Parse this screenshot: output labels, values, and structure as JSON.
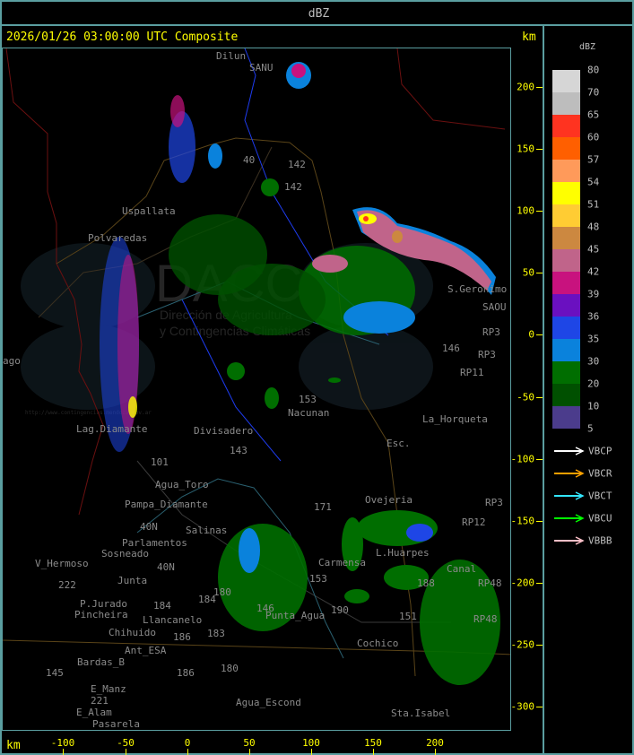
{
  "header": {
    "title": "dBZ"
  },
  "map": {
    "timestamp": "2026/01/26 03:00:00 UTC Composite",
    "x_unit": "km",
    "y_unit": "km",
    "x_ticks": [
      "-100",
      "-50",
      "0",
      "50",
      "100",
      "150",
      "200"
    ],
    "y_ticks": [
      "200",
      "150",
      "100",
      "50",
      "0",
      "-50",
      "-100",
      "-150",
      "-200",
      "-250",
      "-300"
    ],
    "watermark_text": [
      "DACC",
      "Dirección de Agricultura",
      "y Contingencias Climáticas",
      "http://www.contingencias.mendoza.gov.ar"
    ],
    "places": [
      "Dilun",
      "SANU",
      "Uspallata",
      "Polvaredas",
      "S.Geronimo",
      "SAOU",
      "Nacunan",
      "La_Horqueta",
      "Esc.",
      "Divisadero",
      "Lag.Diamante",
      "Agua_Toro",
      "Pampa_Diamante",
      "Salinas",
      "Parlamentos",
      "Sosneado",
      "V_Hermoso",
      "Junta",
      "P.Jurado",
      "Pincheira",
      "Llancanelo",
      "Chihuido",
      "Ant_ESA",
      "Bardas_B",
      "E_Manz",
      "E_Alam",
      "Pasarela",
      "Agua_Escond",
      "Carmensa",
      "L.Huarpes",
      "Ovejeria",
      "Punta_Agua",
      "Cochico",
      "Sta.Isabel",
      "Canal",
      "ago"
    ],
    "routes": [
      "40",
      "142",
      "142",
      "153",
      "153",
      "143",
      "146",
      "146",
      "101",
      "40N",
      "40N",
      "184",
      "184",
      "180",
      "180",
      "183",
      "186",
      "186",
      "190",
      "151",
      "188",
      "RP3",
      "RP3",
      "RP3",
      "RP11",
      "RP12",
      "RP48",
      "RP48",
      "145",
      "222",
      "221",
      "171"
    ]
  },
  "legend": {
    "unit": "dBZ",
    "labels": [
      "80",
      "70",
      "65",
      "60",
      "57",
      "54",
      "51",
      "48",
      "45",
      "42",
      "39",
      "36",
      "35",
      "30",
      "20",
      "10",
      "5"
    ],
    "colors": [
      "#d6d6d6",
      "#bdbdbd",
      "#ff3320",
      "#ff5f00",
      "#ff9a5a",
      "#ffff00",
      "#ffcc33",
      "#cc8840",
      "#c0648a",
      "#c8127e",
      "#6a10c0",
      "#1e46e6",
      "#0a82dc",
      "#006e00",
      "#005000",
      "#4b3c8c"
    ],
    "radars": [
      {
        "name": "VBCP",
        "color": "#ffffff"
      },
      {
        "name": "VBCR",
        "color": "#ffa000"
      },
      {
        "name": "VBCT",
        "color": "#33e6ff"
      },
      {
        "name": "VBCU",
        "color": "#00ff00"
      },
      {
        "name": "VBBB",
        "color": "#ffc0c8"
      }
    ]
  }
}
